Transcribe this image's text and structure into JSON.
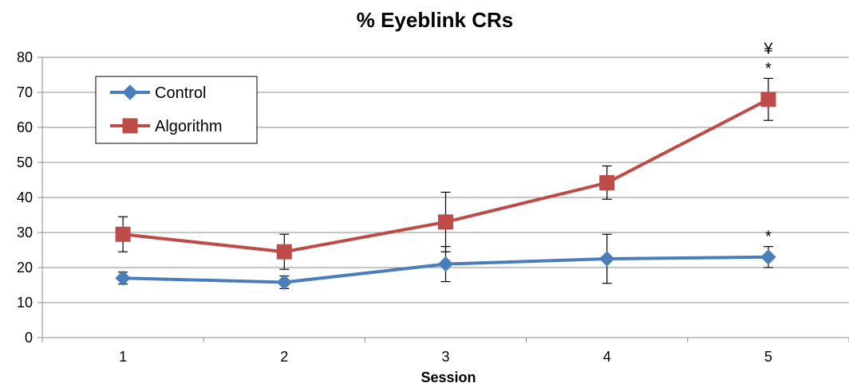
{
  "chart_data": {
    "type": "line",
    "title": "% Eyeblink CRs",
    "xlabel": "Session",
    "ylabel": "",
    "categories": [
      "1",
      "2",
      "3",
      "4",
      "5"
    ],
    "ylim": [
      0,
      80
    ],
    "yticks": [
      0,
      10,
      20,
      30,
      40,
      50,
      60,
      70,
      80
    ],
    "grid": true,
    "legend_position": "top-left",
    "series": [
      {
        "name": "Control",
        "color": "#4a7ebb",
        "marker": "diamond",
        "values": [
          17,
          15.8,
          21,
          22.5,
          23
        ],
        "error": [
          [
            15.3,
            18.7
          ],
          [
            14,
            17.6
          ],
          [
            16,
            26
          ],
          [
            15.5,
            29.5
          ],
          [
            20,
            26
          ]
        ]
      },
      {
        "name": "Algorithm",
        "color": "#be4b48",
        "marker": "square",
        "values": [
          29.5,
          24.5,
          33,
          44.2,
          68
        ],
        "error": [
          [
            24.5,
            34.5
          ],
          [
            19.5,
            29.5
          ],
          [
            24.5,
            41.5
          ],
          [
            39.5,
            49
          ],
          [
            62,
            74
          ]
        ]
      }
    ],
    "annotations": [
      {
        "text": "*",
        "category": "5",
        "series": "Control",
        "value": 26
      },
      {
        "text": "*",
        "category": "5",
        "series": "Algorithm",
        "value": 74
      },
      {
        "text": "¥",
        "category": "5",
        "series": "Algorithm",
        "value": 74
      }
    ]
  }
}
